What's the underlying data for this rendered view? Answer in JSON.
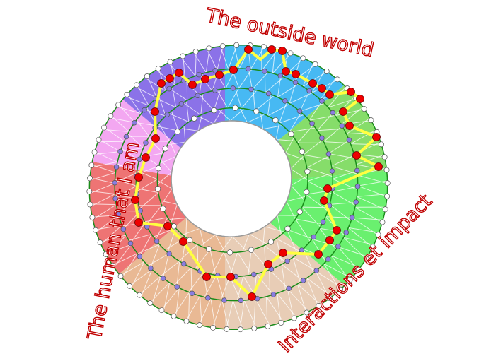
{
  "labels": {
    "top": "The outside world",
    "left": "The human that I am",
    "right": "Interactions et impact"
  },
  "colors": {
    "sectors": [
      "#47b9f3",
      "#86dd6a",
      "#6af06f",
      "#e8cdb6",
      "#e9b994",
      "#ee7474",
      "#f3a7f1",
      "#8b72e8"
    ],
    "ring_line": "#1a8c1a",
    "path": "#ffff40",
    "path_node": "#ee0000",
    "mid_node": "#8a7de0",
    "edge_node": "#ffffff",
    "text_outline": "#c00000"
  }
}
